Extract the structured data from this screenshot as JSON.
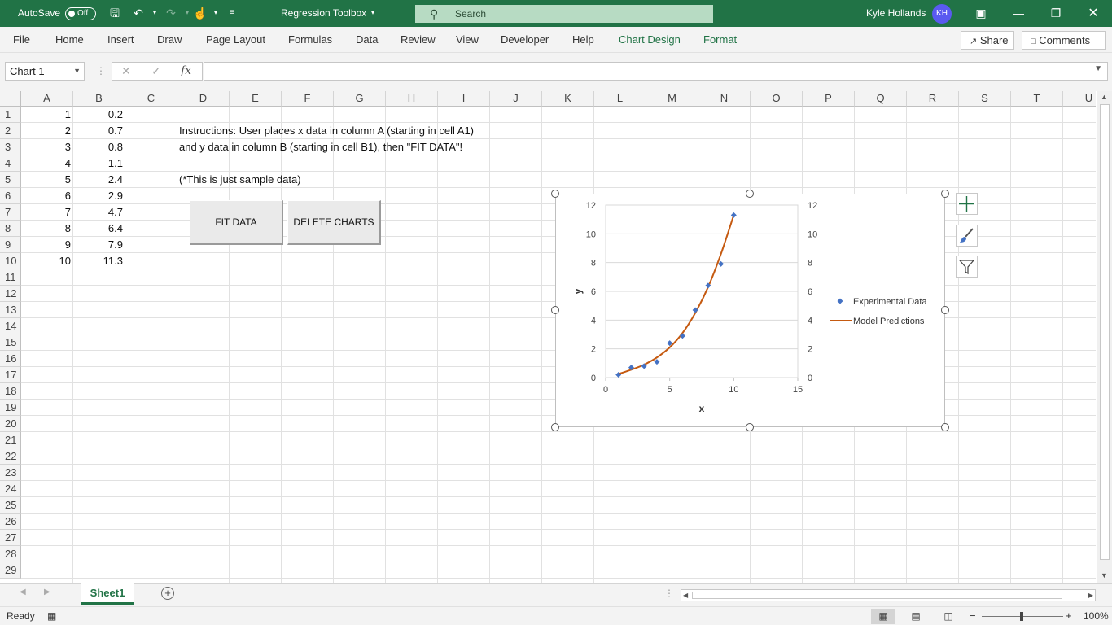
{
  "titlebar": {
    "autosave_label": "AutoSave",
    "autosave_state": "Off",
    "doc_title": "Regression Toolbox",
    "search_placeholder": "Search",
    "user_name": "Kyle Hollands",
    "user_initials": "KH"
  },
  "ribbon": {
    "tabs": [
      "File",
      "Home",
      "Insert",
      "Draw",
      "Page Layout",
      "Formulas",
      "Data",
      "Review",
      "View",
      "Developer",
      "Help",
      "Chart Design",
      "Format"
    ],
    "share_label": "Share",
    "comments_label": "Comments"
  },
  "formula_bar": {
    "name_box": "Chart 1",
    "fx_label": "fx",
    "formula": ""
  },
  "grid": {
    "columns": [
      "A",
      "B",
      "C",
      "D",
      "E",
      "F",
      "G",
      "H",
      "I",
      "J",
      "K",
      "L",
      "M",
      "N",
      "O",
      "P",
      "Q",
      "R",
      "S",
      "T",
      "U"
    ],
    "rows": [
      "1",
      "2",
      "3",
      "4",
      "5",
      "6",
      "7",
      "8",
      "9",
      "10",
      "11",
      "12",
      "13",
      "14",
      "15",
      "16",
      "17",
      "18",
      "19",
      "20",
      "21",
      "22",
      "23",
      "24",
      "25",
      "26",
      "27",
      "28",
      "29"
    ],
    "col_a": [
      "1",
      "2",
      "3",
      "4",
      "5",
      "6",
      "7",
      "8",
      "9",
      "10"
    ],
    "col_b": [
      "0.2",
      "0.7",
      "0.8",
      "1.1",
      "2.4",
      "2.9",
      "4.7",
      "6.4",
      "7.9",
      "11.3"
    ],
    "instructions_line1": "Instructions: User places x data in column A (starting in cell A1)",
    "instructions_line2": "and y data in column B (starting in cell B1), then \"FIT DATA\"!",
    "sample_note": "(*This is just sample data)",
    "fit_button": "FIT DATA",
    "delete_button": "DELETE CHARTS"
  },
  "chart_data": {
    "type": "scatter",
    "xlabel": "x",
    "ylabel": "y",
    "xlim": [
      0,
      15
    ],
    "ylim": [
      0,
      12
    ],
    "xticks": [
      0,
      5,
      10,
      15
    ],
    "yticks": [
      0,
      2,
      4,
      6,
      8,
      10,
      12
    ],
    "grid": true,
    "legend_position": "right",
    "series": [
      {
        "name": "Experimental Data",
        "kind": "markers",
        "color": "#4472c4",
        "x": [
          1,
          2,
          3,
          4,
          5,
          6,
          7,
          8,
          9,
          10
        ],
        "y": [
          0.2,
          0.7,
          0.8,
          1.1,
          2.4,
          2.9,
          4.7,
          6.4,
          7.9,
          11.3
        ]
      },
      {
        "name": "Model Predictions",
        "kind": "line",
        "color": "#c55a11",
        "x": [
          1,
          2,
          3,
          4,
          5,
          6,
          7,
          8,
          9,
          10
        ],
        "y": [
          0.25,
          0.55,
          0.9,
          1.4,
          2.1,
          3.1,
          4.5,
          6.3,
          8.6,
          11.3
        ]
      }
    ]
  },
  "sheetbar": {
    "sheet_name": "Sheet1"
  },
  "status": {
    "ready": "Ready",
    "zoom": "100%"
  }
}
